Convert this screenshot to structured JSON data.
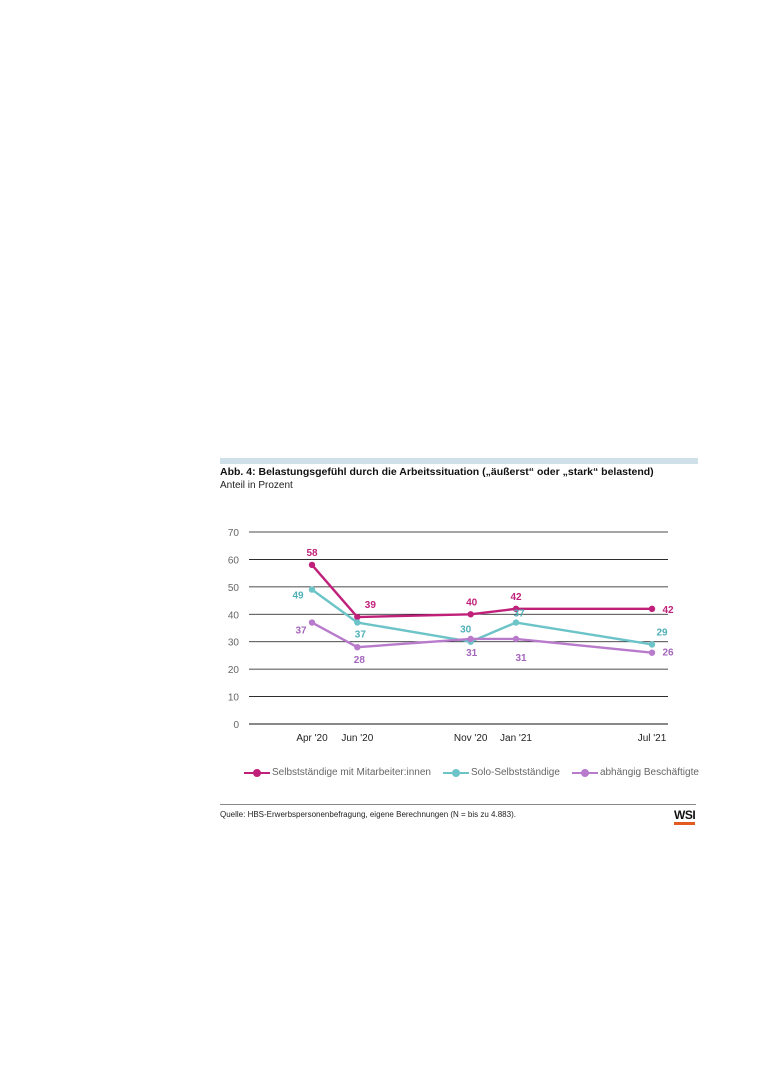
{
  "figure": {
    "title": "Abb. 4: Belastungsgefühl durch die Arbeitssituation („äußerst“ oder „stark“ belastend)",
    "subtitle": "Anteil in Prozent",
    "source": "Quelle: HBS-Erwerbspersonenbefragung, eigene Berechnungen (N = bis zu 4.883).",
    "logo": "WSI"
  },
  "chart_data": {
    "type": "line",
    "x": [
      "Apr '20",
      "Jun '20",
      "Nov '20",
      "Jan '21",
      "Jul '21"
    ],
    "x_positions": [
      0,
      2,
      7,
      9,
      15
    ],
    "series": [
      {
        "name": "Selbstständige mit Mitarbeiter:innen",
        "values": [
          58,
          39,
          40,
          42,
          42
        ],
        "color": "#c0207a",
        "label_color": "#c0207a"
      },
      {
        "name": "Solo-Selbstständige",
        "values": [
          49,
          37,
          30,
          37,
          29
        ],
        "color": "#6cc4c8",
        "label_color": "#4fb0b6"
      },
      {
        "name": "abhängig Beschäftigte",
        "values": [
          37,
          28,
          31,
          31,
          26
        ],
        "color": "#b87acb",
        "label_color": "#a466bb"
      }
    ],
    "ylim": [
      0,
      70
    ],
    "yticks": [
      0,
      10,
      20,
      30,
      40,
      50,
      60,
      70
    ],
    "grid": true,
    "legend": "bottom"
  }
}
